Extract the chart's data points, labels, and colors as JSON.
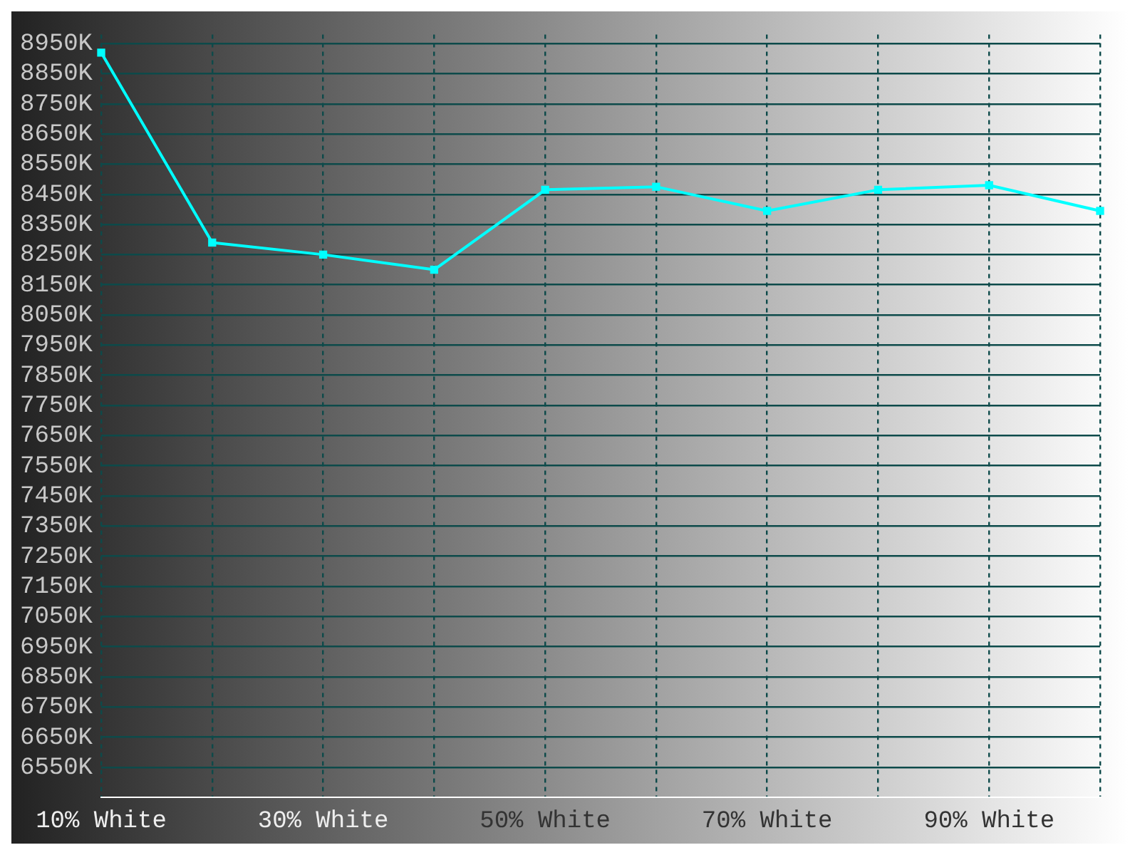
{
  "chart_data": {
    "type": "line",
    "categories": [
      "10% White",
      null,
      "30% White",
      null,
      "50% White",
      null,
      "70% White",
      null,
      "90% White",
      null
    ],
    "series": [
      {
        "color": "#00ffff",
        "values": [
          8920,
          8290,
          8250,
          8200,
          8465,
          8475,
          8395,
          8465,
          8480,
          8395
        ]
      }
    ],
    "ylim": [
      6450,
      8980
    ],
    "yticks": [
      {
        "value": 6550,
        "label": "6550K"
      },
      {
        "value": 6650,
        "label": "6650K"
      },
      {
        "value": 6750,
        "label": "6750K"
      },
      {
        "value": 6850,
        "label": "6850K"
      },
      {
        "value": 6950,
        "label": "6950K"
      },
      {
        "value": 7050,
        "label": "7050K"
      },
      {
        "value": 7150,
        "label": "7150K"
      },
      {
        "value": 7250,
        "label": "7250K"
      },
      {
        "value": 7350,
        "label": "7350K"
      },
      {
        "value": 7450,
        "label": "7450K"
      },
      {
        "value": 7550,
        "label": "7550K"
      },
      {
        "value": 7650,
        "label": "7650K"
      },
      {
        "value": 7750,
        "label": "7750K"
      },
      {
        "value": 7850,
        "label": "7850K"
      },
      {
        "value": 7950,
        "label": "7950K"
      },
      {
        "value": 8050,
        "label": "8050K"
      },
      {
        "value": 8150,
        "label": "8150K"
      },
      {
        "value": 8250,
        "label": "8250K"
      },
      {
        "value": 8350,
        "label": "8350K"
      },
      {
        "value": 8450,
        "label": "8450K"
      },
      {
        "value": 8550,
        "label": "8550K"
      },
      {
        "value": 8650,
        "label": "8650K"
      },
      {
        "value": 8750,
        "label": "8750K"
      },
      {
        "value": 8850,
        "label": "8850K"
      },
      {
        "value": 8950,
        "label": "8950K"
      }
    ],
    "grid": true,
    "marker": "square",
    "line_style": "solid"
  }
}
